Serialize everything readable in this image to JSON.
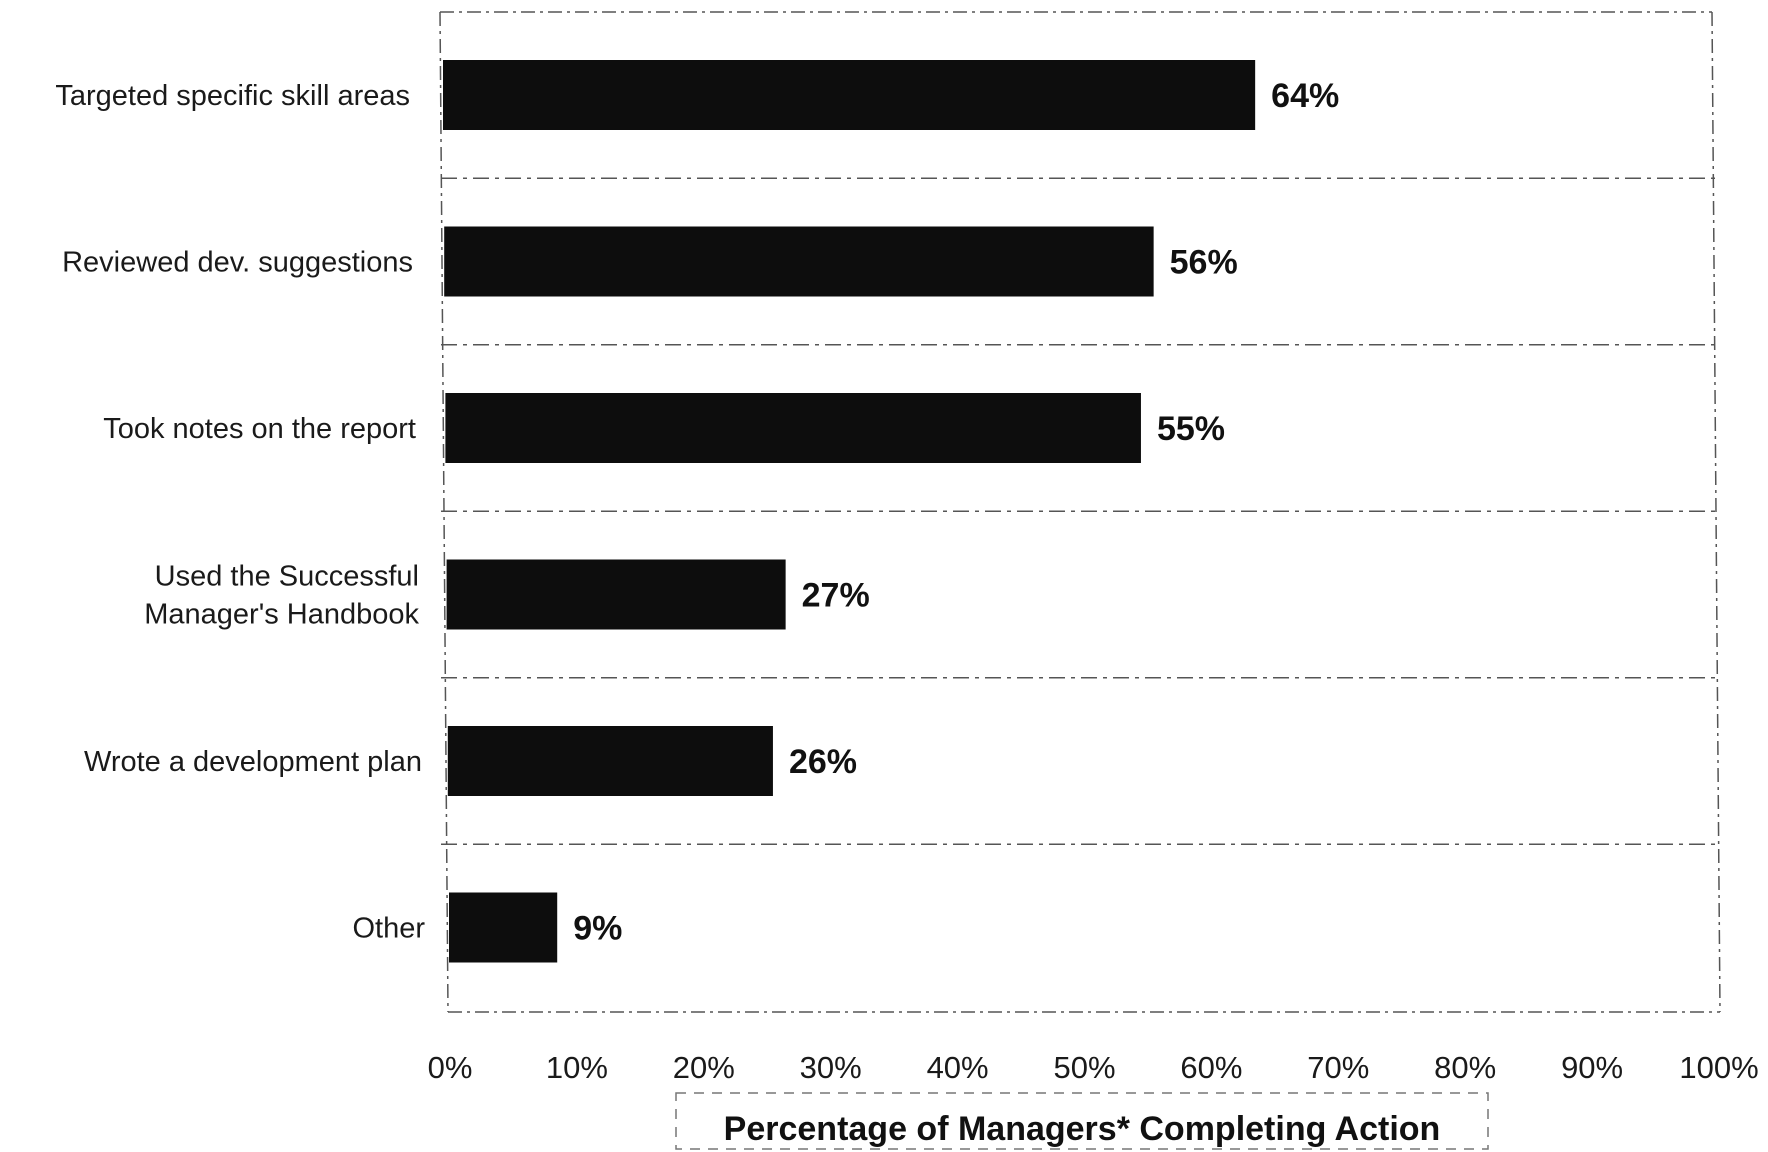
{
  "chart_data": {
    "type": "bar",
    "orientation": "horizontal",
    "categories": [
      [
        "Targeted specific skill areas"
      ],
      [
        "Reviewed dev. suggestions"
      ],
      [
        "Took notes on the report"
      ],
      [
        "Used the Successful",
        "Manager's Handbook"
      ],
      [
        "Wrote a development plan"
      ],
      [
        "Other"
      ]
    ],
    "values": [
      64,
      56,
      55,
      27,
      26,
      9
    ],
    "value_labels": [
      "64%",
      "56%",
      "55%",
      "27%",
      "26%",
      "9%"
    ],
    "title": "",
    "xlabel": "Percentage of Managers* Completing Action",
    "ylabel": "",
    "xlim": [
      0,
      100
    ],
    "x_ticks": [
      0,
      10,
      20,
      30,
      40,
      50,
      60,
      70,
      80,
      90,
      100
    ],
    "x_tick_labels": [
      "0%",
      "10%",
      "20%",
      "30%",
      "40%",
      "50%",
      "60%",
      "70%",
      "80%",
      "90%",
      "100%"
    ],
    "grid": "horizontal",
    "legend": "none",
    "colors": {
      "bar": "#0d0d0d",
      "text": "#111111",
      "grid": "#555555"
    }
  }
}
